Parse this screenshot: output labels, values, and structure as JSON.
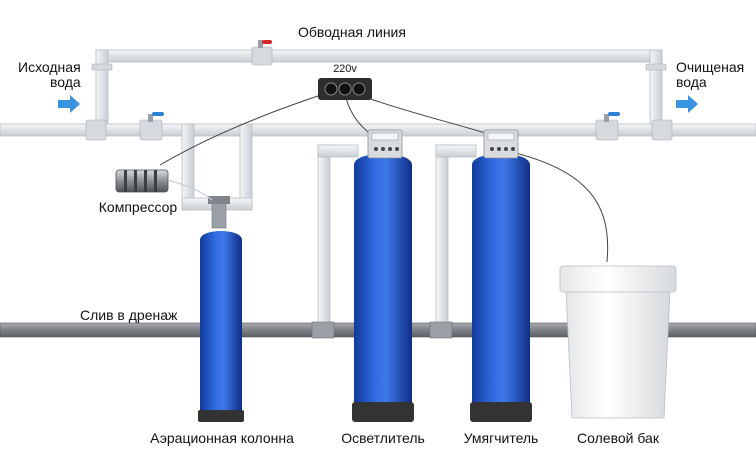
{
  "labels": {
    "bypass_line": "Обводная линия",
    "source_water": [
      "Исходная",
      "вода"
    ],
    "purified_water": [
      "Очищеная",
      "вода"
    ],
    "power": "220v",
    "compressor": "Компрессор",
    "drain": "Слив в дренаж",
    "aeration_column": "Аэрационная колонна",
    "clarifier": "Осветлитель",
    "softener": "Умягчитель",
    "brine_tank": "Солевой бак"
  },
  "colors": {
    "pipe": "#e6e9ec",
    "pipe_outline": "#b9bec4",
    "drain_pipe": "#8c8f93",
    "tank": "#1f53c9",
    "tank_highlight": "#5f8df0",
    "tank_base": "#333333",
    "flow_arrow": "#3a93e0",
    "valve_handle_blue": "#2f7fd6",
    "valve_handle_red": "#d9262b"
  },
  "icons": {
    "inlet_arrow": "arrow-right-icon",
    "outlet_arrow": "arrow-right-icon"
  }
}
